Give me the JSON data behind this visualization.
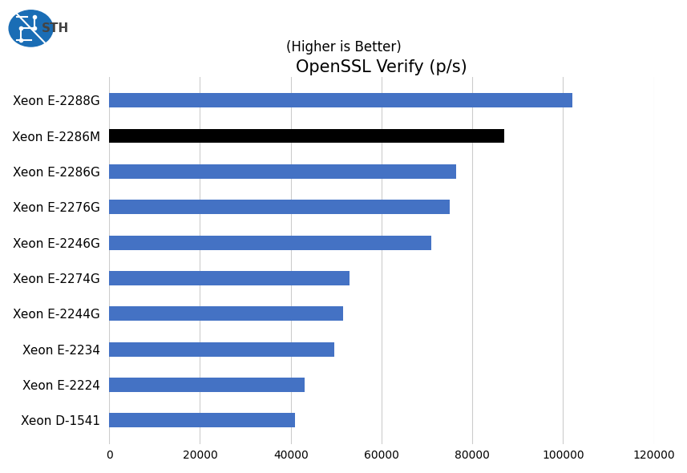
{
  "title": "OpenSSL Verify (p/s)",
  "subtitle": "(Higher is Better)",
  "categories": [
    "Xeon D-1541",
    "Xeon E-2224",
    "Xeon E-2234",
    "Xeon E-2244G",
    "Xeon E-2274G",
    "Xeon E-2246G",
    "Xeon E-2276G",
    "Xeon E-2286G",
    "Xeon E-2286M",
    "Xeon E-2288G"
  ],
  "values": [
    41000,
    43000,
    49500,
    51500,
    53000,
    71000,
    75000,
    76500,
    87000,
    102000
  ],
  "bar_colors": [
    "#4472c4",
    "#4472c4",
    "#4472c4",
    "#4472c4",
    "#4472c4",
    "#4472c4",
    "#4472c4",
    "#4472c4",
    "#000000",
    "#4472c4"
  ],
  "xlim": [
    0,
    120000
  ],
  "xticks": [
    0,
    20000,
    40000,
    60000,
    80000,
    100000,
    120000
  ],
  "xtick_labels": [
    "0",
    "20000",
    "40000",
    "60000",
    "80000",
    "100000",
    "120000"
  ],
  "title_fontsize": 15,
  "subtitle_fontsize": 12,
  "tick_fontsize": 10,
  "label_fontsize": 11,
  "bar_height": 0.4,
  "background_color": "#ffffff",
  "grid_color": "#cccccc",
  "figsize": [
    8.57,
    5.9
  ]
}
